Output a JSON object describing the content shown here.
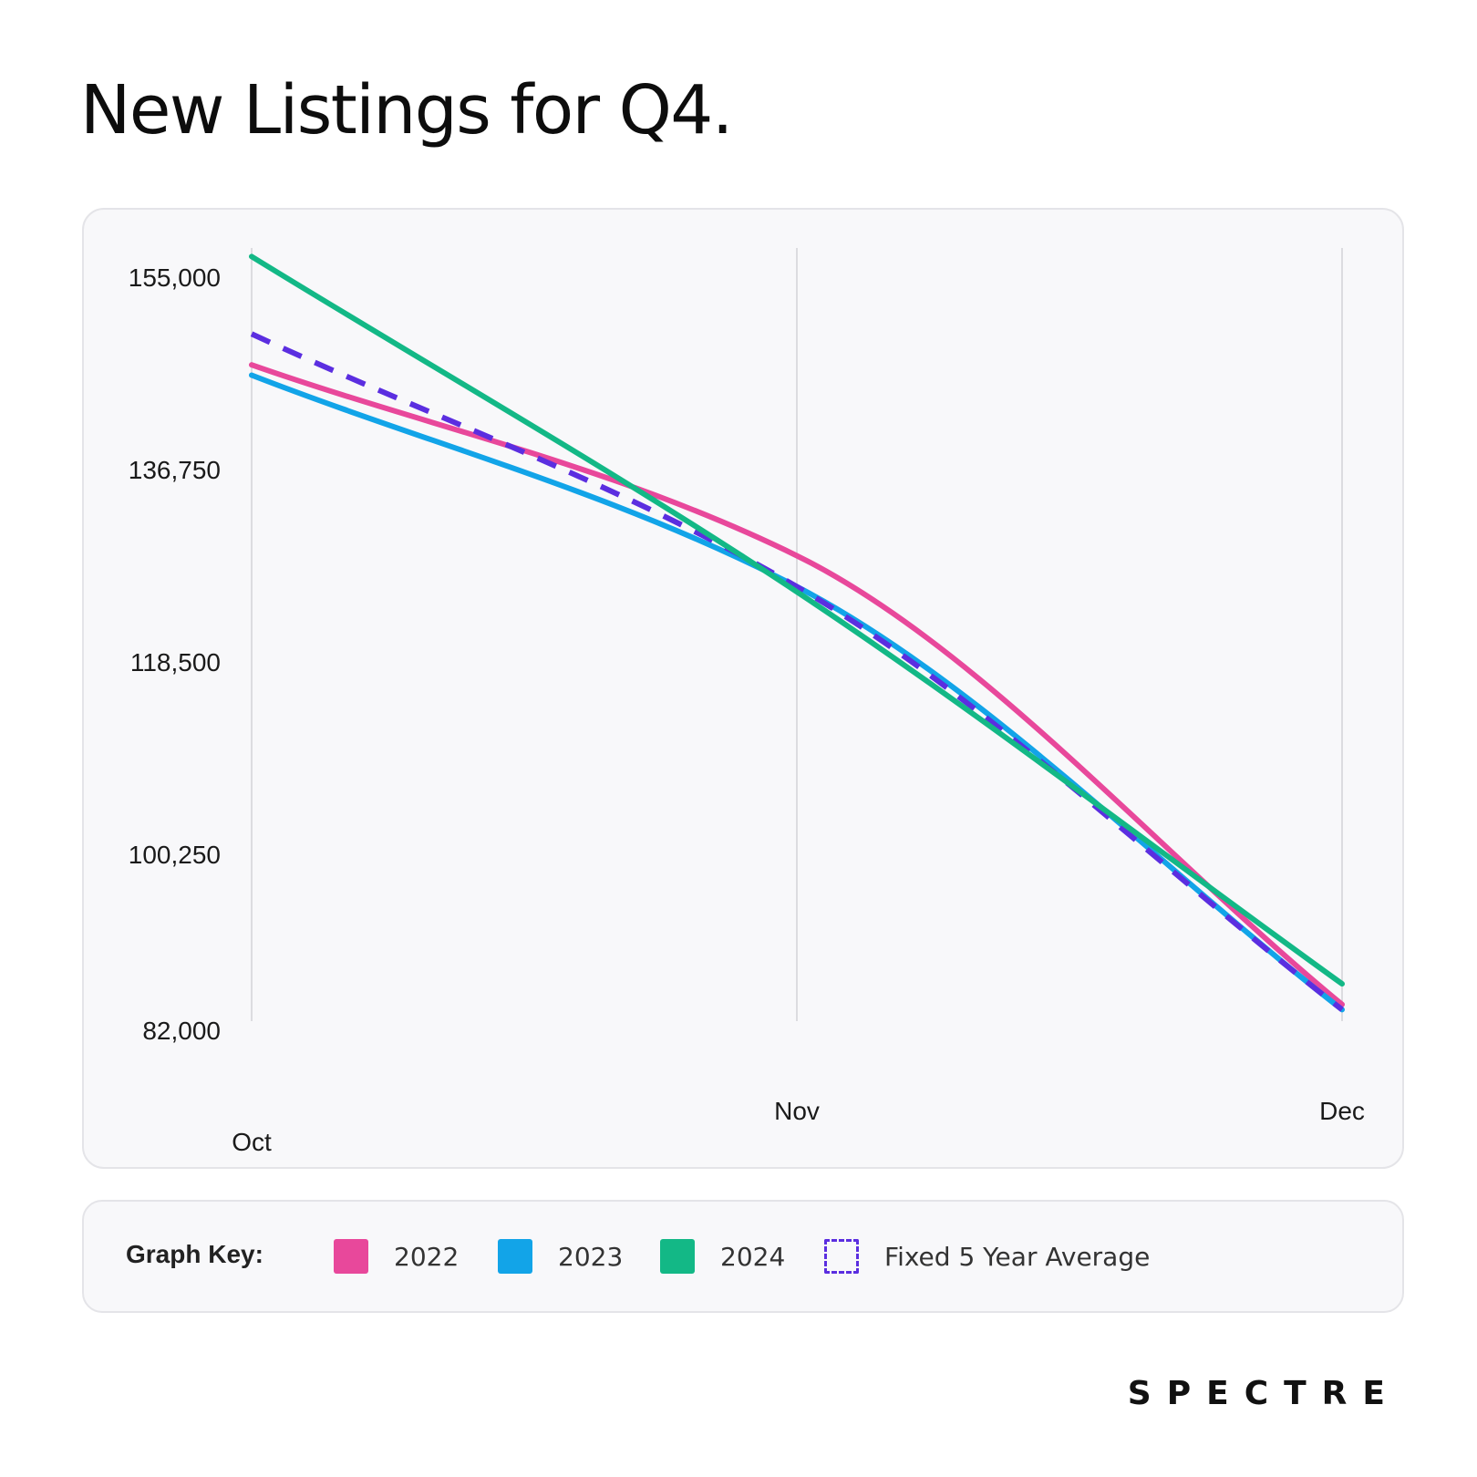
{
  "title": "New Listings for Q4.",
  "legend": {
    "title": "Graph Key:",
    "items": [
      {
        "label": "2022",
        "color": "#e8489b",
        "style": "solid"
      },
      {
        "label": "2023",
        "color": "#12a4e8",
        "style": "solid"
      },
      {
        "label": "2024",
        "color": "#13b886",
        "style": "solid"
      },
      {
        "label": "Fixed 5 Year Average",
        "color": "#5b2ee0",
        "style": "dashed"
      }
    ]
  },
  "brand": "SPECTRE",
  "chart_data": {
    "type": "line",
    "title": "New Listings for Q4.",
    "categories": [
      "Oct",
      "Nov",
      "Dec"
    ],
    "y_ticks": [
      "155,000",
      "136,750",
      "118,500",
      "100,250",
      "82,000"
    ],
    "ylim": [
      82000,
      155000
    ],
    "grid": "vertical-lines-at-categories",
    "legend_position": "bottom",
    "series": [
      {
        "name": "2022",
        "color": "#e8489b",
        "dashed": false,
        "values": [
          146500,
          128000,
          84500
        ]
      },
      {
        "name": "2023",
        "color": "#12a4e8",
        "dashed": false,
        "values": [
          145500,
          125000,
          84000
        ]
      },
      {
        "name": "2024",
        "color": "#13b886",
        "dashed": false,
        "values": [
          157000,
          124500,
          86500
        ]
      },
      {
        "name": "Fixed 5 Year Average",
        "color": "#5b2ee0",
        "dashed": true,
        "values": [
          149500,
          125000,
          84000
        ]
      }
    ]
  }
}
